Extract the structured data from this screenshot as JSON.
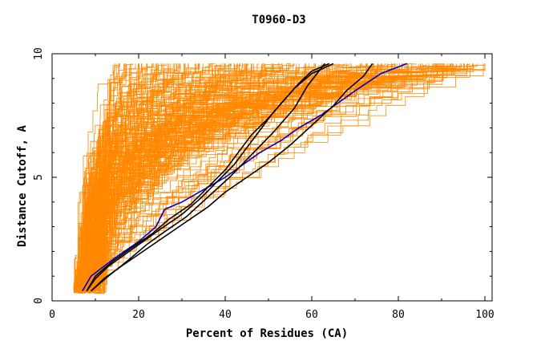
{
  "chart_data": {
    "type": "line",
    "title": "T0960-D3",
    "xlabel": "Percent of Residues (CA)",
    "ylabel": "Distance Cutoff, A",
    "xlim": [
      0,
      100
    ],
    "ylim": [
      0,
      10
    ],
    "x_ticks": [
      "0",
      "20",
      "40",
      "60",
      "80",
      "100"
    ],
    "y_ticks": [
      "0",
      "5",
      "10"
    ],
    "grid": false,
    "colors": {
      "background_models": "#ff8800",
      "highlight_black": "#000000",
      "highlight_blue": "#0000cc"
    },
    "background_series_count": 220,
    "highlight_series": [
      {
        "color": "#0000cc",
        "x": [
          7,
          9,
          15,
          20,
          24,
          26,
          30,
          35,
          40,
          44,
          48,
          53,
          57,
          62,
          66,
          70,
          76,
          82
        ],
        "y": [
          0.4,
          1.0,
          1.8,
          2.4,
          3.0,
          3.7,
          4.0,
          4.5,
          5.0,
          5.5,
          6.0,
          6.5,
          7.0,
          7.5,
          8.0,
          8.5,
          9.2,
          9.6
        ]
      },
      {
        "color": "#000000",
        "x": [
          8,
          10,
          14,
          18,
          23,
          27,
          32,
          36,
          40,
          43,
          46,
          50,
          53,
          56,
          60,
          65
        ],
        "y": [
          0.4,
          1.0,
          1.6,
          2.1,
          2.7,
          3.3,
          3.9,
          4.6,
          5.3,
          6.0,
          6.7,
          7.4,
          8.0,
          8.6,
          9.2,
          9.6
        ]
      },
      {
        "color": "#000000",
        "x": [
          8,
          10,
          13,
          17,
          21,
          25,
          30,
          34,
          38,
          42,
          45,
          48,
          51,
          54,
          57,
          60,
          64
        ],
        "y": [
          0.4,
          0.9,
          1.4,
          1.9,
          2.4,
          2.9,
          3.5,
          4.1,
          4.8,
          5.5,
          6.2,
          6.9,
          7.6,
          8.2,
          8.8,
          9.3,
          9.6
        ]
      },
      {
        "color": "#000000",
        "x": [
          9,
          12,
          16,
          21,
          26,
          31,
          36,
          40,
          45,
          50,
          55,
          60,
          65,
          68,
          72,
          74
        ],
        "y": [
          0.4,
          0.9,
          1.4,
          2.0,
          2.6,
          3.2,
          3.8,
          4.4,
          5.0,
          5.6,
          6.3,
          7.1,
          7.9,
          8.5,
          9.1,
          9.6
        ]
      },
      {
        "color": "#000000",
        "x": [
          9,
          13,
          18,
          22,
          26,
          31,
          36,
          41,
          46,
          51,
          56,
          59,
          63
        ],
        "y": [
          0.4,
          1.0,
          1.7,
          2.3,
          2.8,
          3.4,
          4.2,
          5.0,
          5.9,
          6.8,
          7.8,
          8.7,
          9.6
        ]
      }
    ]
  }
}
